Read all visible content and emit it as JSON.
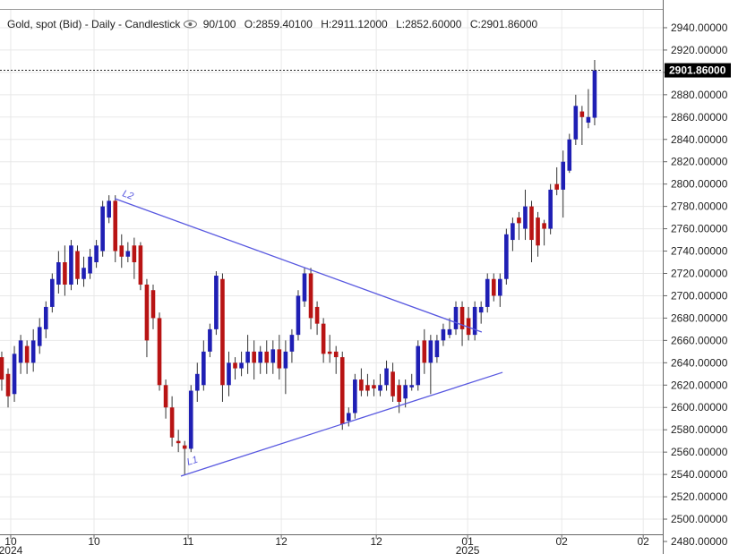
{
  "chart_data": {
    "type": "candlestick",
    "header": {
      "title": "Gold, spot (Bid) - Daily - Candlestick",
      "quality": "90/100",
      "open": "O:2859.40100",
      "high": "H:2911.12000",
      "low": "L:2852.60000",
      "close": "C:2901.86000"
    },
    "open": [
      2645,
      2630,
      2612,
      2640,
      2655,
      2640,
      2655,
      2670,
      2690,
      2710,
      2730,
      2710,
      2740,
      2715,
      2720,
      2730,
      2740,
      2770,
      2785,
      2745,
      2735,
      2745,
      2745,
      2710,
      2705,
      2680,
      2620,
      2600,
      2570,
      2566,
      2563,
      2615,
      2620,
      2650,
      2670,
      2715,
      2620,
      2640,
      2635,
      2640,
      2650,
      2640,
      2650,
      2640,
      2652,
      2635,
      2650,
      2665,
      2695,
      2720,
      2690,
      2675,
      2650,
      2650,
      2645,
      2588,
      2595,
      2625,
      2620,
      2620,
      2615,
      2620,
      2632,
      2620,
      2608,
      2618,
      2620,
      2660,
      2640,
      2645,
      2660,
      2665,
      2670,
      2690,
      2680,
      2665,
      2685,
      2690,
      2715,
      2700,
      2715,
      2750,
      2770,
      2760,
      2780,
      2770,
      2765,
      2760,
      2800,
      2795,
      2812,
      2840,
      2865,
      2855,
      2859.4
    ],
    "high": [
      2650,
      2635,
      2655,
      2665,
      2660,
      2670,
      2680,
      2695,
      2720,
      2740,
      2745,
      2750,
      2745,
      2735,
      2742,
      2750,
      2785,
      2790,
      2790,
      2755,
      2748,
      2752,
      2748,
      2715,
      2710,
      2685,
      2625,
      2610,
      2580,
      2570,
      2620,
      2640,
      2660,
      2675,
      2722,
      2720,
      2650,
      2645,
      2650,
      2665,
      2660,
      2655,
      2660,
      2660,
      2665,
      2660,
      2670,
      2705,
      2725,
      2725,
      2695,
      2680,
      2665,
      2655,
      2650,
      2600,
      2630,
      2635,
      2630,
      2625,
      2630,
      2642,
      2640,
      2625,
      2625,
      2630,
      2660,
      2670,
      2665,
      2665,
      2675,
      2680,
      2695,
      2695,
      2690,
      2695,
      2695,
      2720,
      2720,
      2720,
      2760,
      2770,
      2775,
      2795,
      2785,
      2775,
      2768,
      2800,
      2815,
      2830,
      2845,
      2880,
      2870,
      2885,
      2911.12
    ],
    "low": [
      2615,
      2600,
      2605,
      2630,
      2630,
      2632,
      2648,
      2662,
      2685,
      2702,
      2700,
      2705,
      2710,
      2708,
      2715,
      2725,
      2735,
      2765,
      2730,
      2725,
      2730,
      2715,
      2705,
      2645,
      2670,
      2615,
      2590,
      2565,
      2560,
      2540,
      2560,
      2605,
      2615,
      2645,
      2665,
      2605,
      2610,
      2625,
      2628,
      2630,
      2625,
      2630,
      2630,
      2630,
      2625,
      2612,
      2640,
      2660,
      2690,
      2670,
      2665,
      2640,
      2640,
      2630,
      2580,
      2583,
      2590,
      2610,
      2610,
      2610,
      2610,
      2615,
      2605,
      2595,
      2600,
      2615,
      2615,
      2630,
      2612,
      2640,
      2655,
      2662,
      2665,
      2655,
      2660,
      2660,
      2675,
      2685,
      2695,
      2690,
      2710,
      2740,
      2750,
      2750,
      2730,
      2735,
      2745,
      2755,
      2790,
      2770,
      2810,
      2835,
      2835,
      2850,
      2852.6
    ],
    "close": [
      2625,
      2610,
      2648,
      2660,
      2640,
      2660,
      2672,
      2690,
      2715,
      2730,
      2710,
      2745,
      2715,
      2725,
      2735,
      2745,
      2780,
      2785,
      2740,
      2735,
      2740,
      2730,
      2710,
      2660,
      2680,
      2620,
      2600,
      2573,
      2568,
      2563,
      2615,
      2630,
      2650,
      2670,
      2718,
      2620,
      2640,
      2635,
      2640,
      2650,
      2640,
      2650,
      2640,
      2652,
      2635,
      2650,
      2665,
      2700,
      2720,
      2680,
      2675,
      2648,
      2648,
      2645,
      2585,
      2595,
      2625,
      2615,
      2615,
      2617,
      2620,
      2635,
      2610,
      2605,
      2620,
      2620,
      2655,
      2640,
      2660,
      2660,
      2670,
      2670,
      2690,
      2670,
      2665,
      2690,
      2690,
      2715,
      2700,
      2715,
      2755,
      2765,
      2765,
      2780,
      2750,
      2745,
      2760,
      2795,
      2795,
      2820,
      2840,
      2870,
      2860,
      2860,
      2901.86
    ],
    "up_color": "#1f1fb4",
    "down_color": "#b81414",
    "last_price": {
      "value": 2901.86,
      "label": "2901.86000"
    },
    "xlim": [
      -0.28,
      104.8
    ],
    "xticks": [
      {
        "value": 1.42,
        "label": "10"
      },
      {
        "value": 14.63,
        "label": "10"
      },
      {
        "value": 29.55,
        "label": "11"
      },
      {
        "value": 44.32,
        "label": "12"
      },
      {
        "value": 59.38,
        "label": "12"
      },
      {
        "value": 73.86,
        "label": "01"
      },
      {
        "value": 88.78,
        "label": "02"
      },
      {
        "value": 101.7,
        "label": "02"
      }
    ],
    "xtick_years": [
      {
        "value": 1.42,
        "label": "2024"
      },
      {
        "value": 73.86,
        "label": "2025"
      }
    ],
    "ylim": [
      2486.4,
      2956.8
    ],
    "yticks": [
      {
        "value": 2480,
        "label": "2480.00000"
      },
      {
        "value": 2500,
        "label": "2500.00000"
      },
      {
        "value": 2520,
        "label": "2520.00000"
      },
      {
        "value": 2540,
        "label": "2540.00000"
      },
      {
        "value": 2560,
        "label": "2560.00000"
      },
      {
        "value": 2580,
        "label": "2580.00000"
      },
      {
        "value": 2600,
        "label": "2600.00000"
      },
      {
        "value": 2620,
        "label": "2620.00000"
      },
      {
        "value": 2640,
        "label": "2640.00000"
      },
      {
        "value": 2660,
        "label": "2660.00000"
      },
      {
        "value": 2680,
        "label": "2680.00000"
      },
      {
        "value": 2700,
        "label": "2700.00000"
      },
      {
        "value": 2720,
        "label": "2720.00000"
      },
      {
        "value": 2740,
        "label": "2740.00000"
      },
      {
        "value": 2760,
        "label": "2760.00000"
      },
      {
        "value": 2780,
        "label": "2780.00000"
      },
      {
        "value": 2800,
        "label": "2800.00000"
      },
      {
        "value": 2820,
        "label": "2820.00000"
      },
      {
        "value": 2840,
        "label": "2840.00000"
      },
      {
        "value": 2860,
        "label": "2860.00000"
      },
      {
        "value": 2880,
        "label": "2880.00000"
      },
      {
        "value": 2900,
        "label": "2900.00000"
      },
      {
        "value": 2920,
        "label": "2920.00000"
      },
      {
        "value": 2940,
        "label": "2940.00000"
      }
    ],
    "grid": true,
    "trendlines": [
      {
        "label": "L2",
        "x": [
          17.9,
          76.1
        ],
        "y": [
          2787,
          2667.5
        ],
        "color": "#5858e0"
      },
      {
        "label": "L1",
        "x": [
          28.4,
          79.4
        ],
        "y": [
          2538.5,
          2631.4
        ],
        "color": "#5858e0"
      }
    ]
  }
}
